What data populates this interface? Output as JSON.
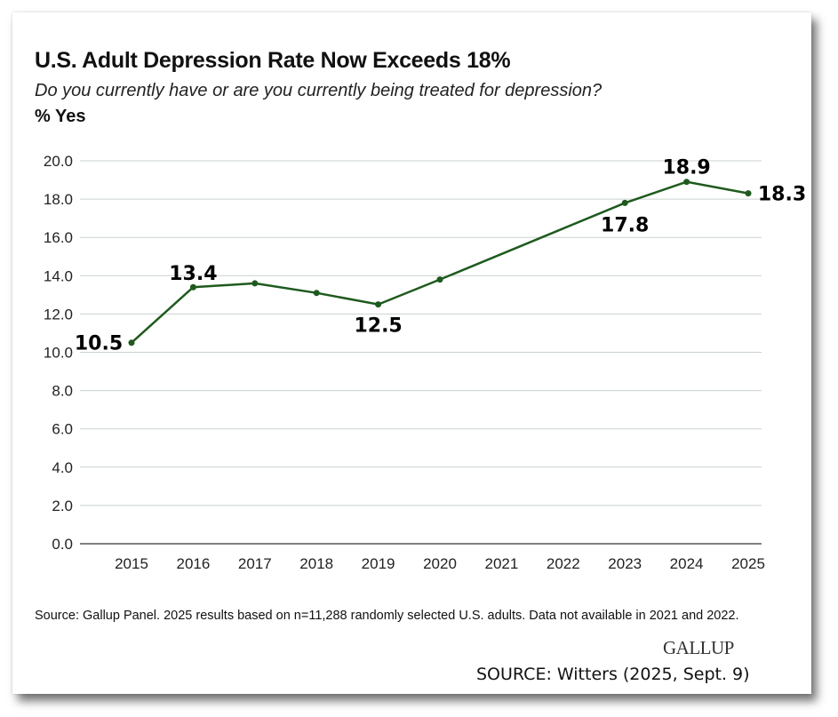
{
  "chart_data": {
    "type": "line",
    "title": "U.S. Adult Depression Rate Now Exceeds 18%",
    "subtitle": "Do you currently have or are you currently being treated for depression?",
    "ylabel": "% Yes",
    "xlabel": "",
    "categories": [
      "2015",
      "2016",
      "2017",
      "2018",
      "2019",
      "2020",
      "2021",
      "2022",
      "2023",
      "2024",
      "2025"
    ],
    "series": [
      {
        "name": "% Yes",
        "values": [
          10.5,
          13.4,
          13.6,
          13.1,
          12.5,
          13.8,
          null,
          null,
          17.8,
          18.9,
          18.3
        ]
      }
    ],
    "data_labels": [
      {
        "year": "2015",
        "text": "10.5"
      },
      {
        "year": "2016",
        "text": "13.4"
      },
      {
        "year": "2019",
        "text": "12.5"
      },
      {
        "year": "2023",
        "text": "17.8"
      },
      {
        "year": "2024",
        "text": "18.9"
      },
      {
        "year": "2025",
        "text": "18.3"
      }
    ],
    "yticks": [
      "0.0",
      "2.0",
      "4.0",
      "6.0",
      "8.0",
      "10.0",
      "12.0",
      "14.0",
      "16.0",
      "18.0",
      "20.0"
    ],
    "ylim": [
      0,
      20
    ],
    "grid": true,
    "line_color": "#1e5a1e"
  },
  "footnote": "Source: Gallup Panel. 2025 results based on n=11,288 randomly selected U.S. adults. Data not available in 2021 and 2022.",
  "logo": "GALLUP",
  "credit": "SOURCE: Witters (2025, Sept. 9)"
}
